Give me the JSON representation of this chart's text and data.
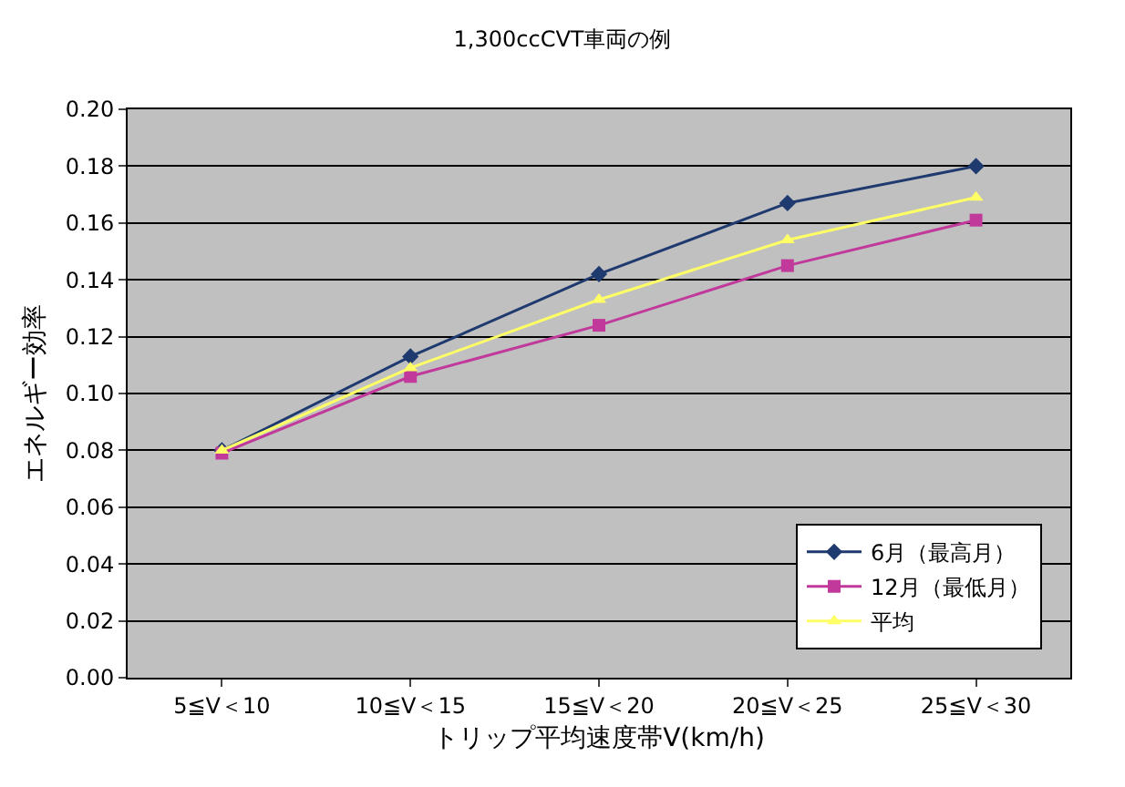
{
  "chart_data": {
    "type": "line",
    "title": "1,300ccCVT車両の例",
    "xlabel": "トリップ平均速度帯V(km/h)",
    "ylabel": "エネルギー効率",
    "categories": [
      "5≦V＜10",
      "10≦V＜15",
      "15≦V＜20",
      "20≦V＜25",
      "25≦V＜30"
    ],
    "series": [
      {
        "name": "6月（最高月）",
        "color": "#1f3a6e",
        "marker": "diamond",
        "values": [
          0.08,
          0.113,
          0.142,
          0.167,
          0.18
        ]
      },
      {
        "name": "12月（最低月）",
        "color": "#c0399b",
        "marker": "square",
        "values": [
          0.079,
          0.106,
          0.124,
          0.145,
          0.161
        ]
      },
      {
        "name": "平均",
        "color": "#ffff66",
        "marker": "triangle",
        "values": [
          0.08,
          0.109,
          0.133,
          0.154,
          0.169
        ]
      }
    ],
    "ylim": [
      0,
      0.2
    ],
    "yticks": [
      {
        "value": 0,
        "label": "0.00"
      },
      {
        "value": 0.02,
        "label": "0.02"
      },
      {
        "value": 0.04,
        "label": "0.04"
      },
      {
        "value": 0.06,
        "label": "0.06"
      },
      {
        "value": 0.08,
        "label": "0.08"
      },
      {
        "value": 0.1,
        "label": "0.10"
      },
      {
        "value": 0.12,
        "label": "0.12"
      },
      {
        "value": 0.14,
        "label": "0.14"
      },
      {
        "value": 0.16,
        "label": "0.16"
      },
      {
        "value": 0.18,
        "label": "0.18"
      },
      {
        "value": 0.2,
        "label": "0.20"
      }
    ],
    "grid": "y",
    "legend": "bottom right",
    "line_style": "solid"
  }
}
